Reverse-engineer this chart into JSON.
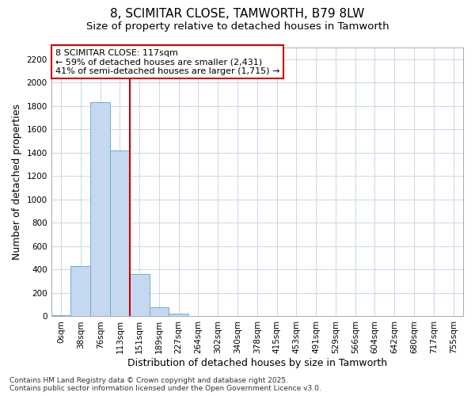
{
  "title1": "8, SCIMITAR CLOSE, TAMWORTH, B79 8LW",
  "title2": "Size of property relative to detached houses in Tamworth",
  "xlabel": "Distribution of detached houses by size in Tamworth",
  "ylabel": "Number of detached properties",
  "bar_labels": [
    "0sqm",
    "38sqm",
    "76sqm",
    "113sqm",
    "151sqm",
    "189sqm",
    "227sqm",
    "264sqm",
    "302sqm",
    "340sqm",
    "378sqm",
    "415sqm",
    "453sqm",
    "491sqm",
    "529sqm",
    "566sqm",
    "604sqm",
    "642sqm",
    "680sqm",
    "717sqm",
    "755sqm"
  ],
  "bar_values": [
    10,
    430,
    1830,
    1420,
    360,
    75,
    25,
    5,
    0,
    0,
    0,
    0,
    0,
    0,
    0,
    0,
    0,
    0,
    0,
    0,
    0
  ],
  "bar_color": "#c5d8f0",
  "bar_edge_color": "#6baed6",
  "grid_color": "#c8d8e8",
  "bg_color": "#ffffff",
  "plot_bg_color": "#ffffff",
  "red_line_bar_index": 3,
  "annotation_text": "8 SCIMITAR CLOSE: 117sqm\n← 59% of detached houses are smaller (2,431)\n41% of semi-detached houses are larger (1,715) →",
  "annotation_box_color": "#ffffff",
  "annotation_border_color": "#cc0000",
  "ylim": [
    0,
    2300
  ],
  "yticks": [
    0,
    200,
    400,
    600,
    800,
    1000,
    1200,
    1400,
    1600,
    1800,
    2000,
    2200
  ],
  "footer_text": "Contains HM Land Registry data © Crown copyright and database right 2025.\nContains public sector information licensed under the Open Government Licence v3.0.",
  "title_fontsize": 11,
  "subtitle_fontsize": 9.5,
  "axis_label_fontsize": 9,
  "tick_fontsize": 7.5,
  "annotation_fontsize": 8,
  "footer_fontsize": 6.5
}
